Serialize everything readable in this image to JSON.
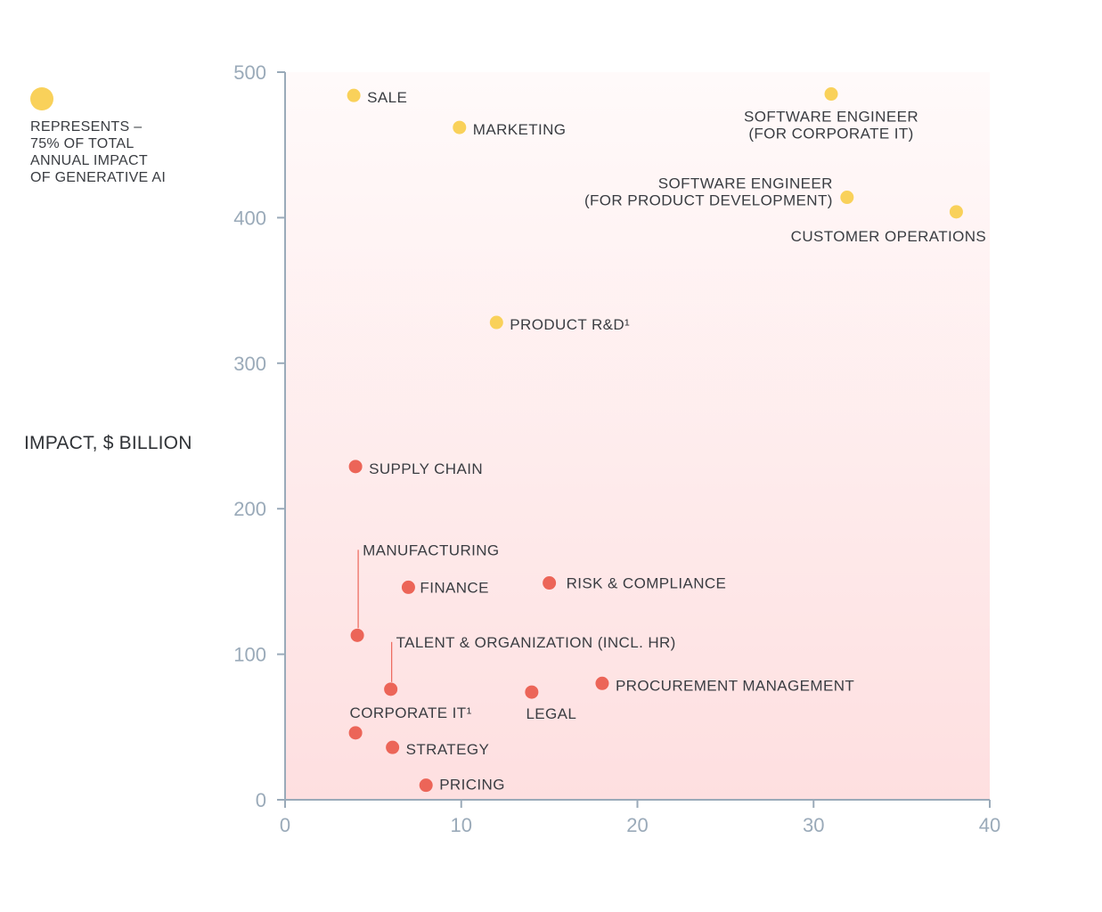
{
  "legend": {
    "text": "REPRESENTS –\n75% OF TOTAL\nANNUAL IMPACT\nOF GENERATIVE AI",
    "color": "#f9d15a"
  },
  "chart_data": {
    "type": "scatter",
    "title": "",
    "xlabel": "",
    "ylabel": "IMPACT, $ BILLION",
    "xlim": [
      0,
      40
    ],
    "ylim": [
      0,
      500
    ],
    "xticks": [
      0,
      10,
      20,
      30,
      40
    ],
    "yticks": [
      0,
      100,
      200,
      300,
      400,
      500
    ],
    "grid": false,
    "colors": {
      "top75": "#f9d15a",
      "other": "#ec6558",
      "axis": "#9aaab9",
      "background_top": "#fffafa",
      "background_bottom": "#fedfe0"
    },
    "points": [
      {
        "label": "SALE",
        "x": 3.9,
        "y": 484,
        "group": "top75"
      },
      {
        "label": "MARKETING",
        "x": 9.9,
        "y": 462,
        "group": "top75"
      },
      {
        "label": "SOFTWARE ENGINEER\n(FOR CORPORATE IT)",
        "x": 31,
        "y": 485,
        "group": "top75"
      },
      {
        "label": "SOFTWARE ENGINEER\n(FOR PRODUCT DEVELOPMENT)",
        "x": 31.9,
        "y": 414,
        "group": "top75"
      },
      {
        "label": "CUSTOMER OPERATIONS",
        "x": 38.1,
        "y": 404,
        "group": "top75"
      },
      {
        "label": "PRODUCT R&D¹",
        "x": 12,
        "y": 328,
        "group": "top75"
      },
      {
        "label": "SUPPLY CHAIN",
        "x": 4,
        "y": 229,
        "group": "other"
      },
      {
        "label": "MANUFACTURING",
        "x": 4.1,
        "y": 113,
        "group": "other"
      },
      {
        "label": "FINANCE",
        "x": 7,
        "y": 146,
        "group": "other"
      },
      {
        "label": "RISK & COMPLIANCE",
        "x": 15,
        "y": 149,
        "group": "other"
      },
      {
        "label": "TALENT & ORGANIZATION (INCL. HR)",
        "x": 6,
        "y": 76,
        "group": "other"
      },
      {
        "label": "LEGAL",
        "x": 14,
        "y": 74,
        "group": "other"
      },
      {
        "label": "PROCUREMENT MANAGEMENT",
        "x": 18,
        "y": 80,
        "group": "other"
      },
      {
        "label": "CORPORATE IT¹",
        "x": 4,
        "y": 46,
        "group": "other"
      },
      {
        "label": "STRATEGY",
        "x": 6.1,
        "y": 36,
        "group": "other"
      },
      {
        "label": "PRICING",
        "x": 8,
        "y": 10,
        "group": "other"
      }
    ]
  }
}
